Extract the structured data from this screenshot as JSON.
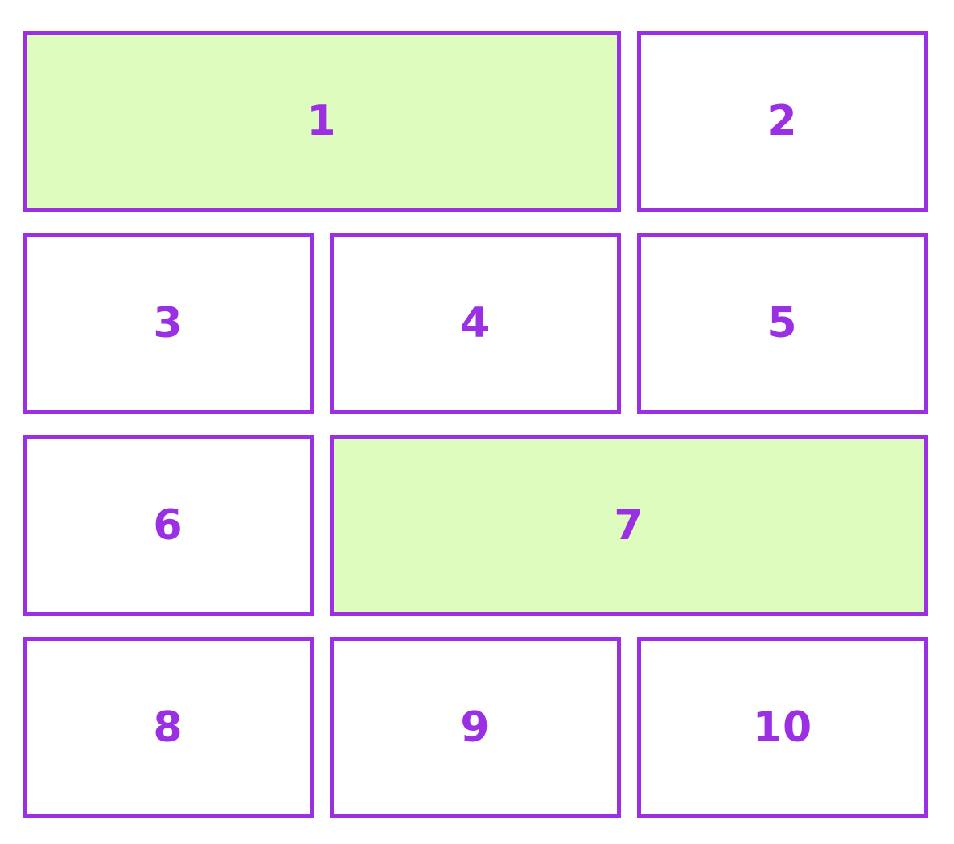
{
  "colors": {
    "accent_purple": "#9b2fe4",
    "highlight_green": "#ddfcbd",
    "cell_background": "#ffffff",
    "page_background": "#ffffff"
  },
  "grid": {
    "columns": 3,
    "cells": [
      {
        "label": "1",
        "highlighted": true,
        "column_start": 1,
        "column_span": 2
      },
      {
        "label": "2",
        "highlighted": false,
        "column_start": 3,
        "column_span": 1
      },
      {
        "label": "3",
        "highlighted": false,
        "column_start": 1,
        "column_span": 1
      },
      {
        "label": "4",
        "highlighted": false,
        "column_start": 2,
        "column_span": 1
      },
      {
        "label": "5",
        "highlighted": false,
        "column_start": 3,
        "column_span": 1
      },
      {
        "label": "6",
        "highlighted": false,
        "column_start": 1,
        "column_span": 1
      },
      {
        "label": "7",
        "highlighted": true,
        "column_start": 2,
        "column_span": 2
      },
      {
        "label": "8",
        "highlighted": false,
        "column_start": 1,
        "column_span": 1
      },
      {
        "label": "9",
        "highlighted": false,
        "column_start": 2,
        "column_span": 1
      },
      {
        "label": "10",
        "highlighted": false,
        "column_start": 3,
        "column_span": 1
      }
    ]
  }
}
